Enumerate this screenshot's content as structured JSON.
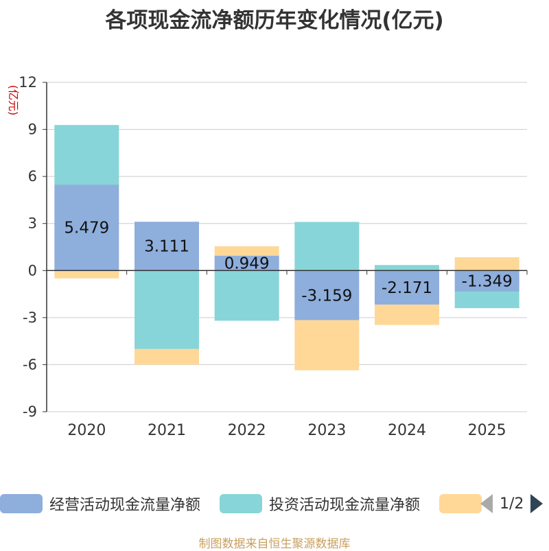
{
  "chart_data": {
    "type": "bar",
    "stacked": true,
    "title": "各项现金流净额历年变化情况(亿元)",
    "ylabel": "(亿元)",
    "ylim": [
      -9,
      12
    ],
    "yticks": [
      12,
      9,
      6,
      3,
      0,
      -3,
      -6,
      -9
    ],
    "ytick_labels": [
      "12",
      "9",
      "6",
      "3",
      "0",
      "-3",
      "-6",
      "-9"
    ],
    "categories": [
      "2020",
      "2021",
      "2022",
      "2023",
      "2024",
      "2025"
    ],
    "series": [
      {
        "name": "经营活动现金流量净额",
        "color": "#8eaedc",
        "values": [
          5.479,
          3.111,
          0.949,
          -3.159,
          -2.171,
          -1.349
        ]
      },
      {
        "name": "投资活动现金流量净额",
        "color": "#87d5d8",
        "values": [
          3.8,
          -5.0,
          -3.2,
          3.1,
          0.35,
          -1.05
        ]
      },
      {
        "name": "",
        "color": "#ffd898",
        "values": [
          -0.5,
          -1.0,
          0.6,
          -3.2,
          -1.3,
          0.85
        ]
      }
    ],
    "data_labels": [
      "5.479",
      "3.111",
      "0.949",
      "-3.159",
      "-2.171",
      "-1.349"
    ],
    "grid": true,
    "legend_position": "bottom"
  },
  "legend": {
    "page": "1/2"
  },
  "footer": "制图数据来自恒生聚源数据库"
}
